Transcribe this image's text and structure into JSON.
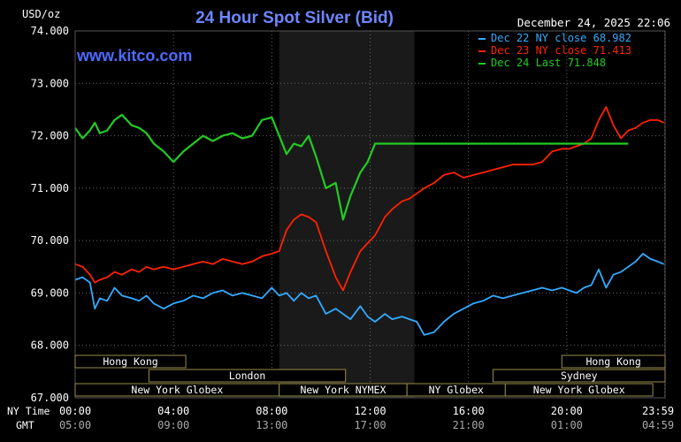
{
  "chart_data": {
    "type": "line",
    "title": "24 Hour Spot Silver (Bid)",
    "watermark": "www.kitco.com",
    "timestamp": "December 24, 2025 22:06",
    "ylabel": "USD/oz",
    "ylim": [
      67000,
      74000
    ],
    "y_ticks": [
      "74.000",
      "73.000",
      "72.000",
      "71.000",
      "70.000",
      "69.000",
      "68.000",
      "67.000"
    ],
    "y_tick_values": [
      74000,
      73000,
      72000,
      71000,
      70000,
      69000,
      68000,
      67000
    ],
    "x_row_labels": {
      "ny": "NY Time",
      "gmt": "GMT"
    },
    "x_ticks_ny": [
      "00:00",
      "04:00",
      "08:00",
      "12:00",
      "16:00",
      "20:00",
      "23:59"
    ],
    "x_ticks_gmt": [
      "05:00",
      "09:00",
      "13:00",
      "17:00",
      "21:00",
      "01:00",
      "04:59"
    ],
    "x_tick_hours": [
      0,
      4,
      8,
      12,
      16,
      20,
      23.983
    ],
    "shaded_region_hours": [
      8.3,
      13.8
    ],
    "legend": [
      {
        "label": "Dec 22 NY close 68.982",
        "color": "#33aaff"
      },
      {
        "label": "Dec 23 NY close 71.413",
        "color": "#ff2200"
      },
      {
        "label": "Dec 24 Last 71.848",
        "color": "#22cc22"
      }
    ],
    "sessions": [
      {
        "label": "Hong Kong",
        "start": 0,
        "end": 4.5,
        "row": 0
      },
      {
        "label": "Hong Kong",
        "start": 19.8,
        "end": 24,
        "row": 0
      },
      {
        "label": "London",
        "start": 3,
        "end": 11,
        "row": 1
      },
      {
        "label": "Sydney",
        "start": 17,
        "end": 24,
        "row": 2
      },
      {
        "label": "New York Globex",
        "start": 0,
        "end": 8.3,
        "row": 3
      },
      {
        "label": "New York NYMEX",
        "start": 8.3,
        "end": 13.5,
        "row": 3
      },
      {
        "label": "NY Globex",
        "start": 13.5,
        "end": 17.5,
        "row": 3
      },
      {
        "label": "New York Globex",
        "start": 17.5,
        "end": 23.5,
        "row": 3
      }
    ],
    "series": [
      {
        "name": "Dec 22 NY close 68.982",
        "color": "#33aaff",
        "x": [
          0,
          0.3,
          0.6,
          0.8,
          1,
          1.3,
          1.6,
          1.9,
          2.3,
          2.6,
          2.9,
          3.2,
          3.6,
          4,
          4.4,
          4.8,
          5.2,
          5.6,
          6,
          6.4,
          6.8,
          7.2,
          7.6,
          8,
          8.3,
          8.6,
          8.9,
          9.2,
          9.5,
          9.8,
          10.2,
          10.6,
          10.9,
          11.2,
          11.6,
          11.9,
          12.2,
          12.6,
          12.9,
          13.3,
          13.6,
          13.9,
          14.2,
          14.6,
          15,
          15.4,
          15.8,
          16.2,
          16.6,
          17,
          17.4,
          17.8,
          18.2,
          18.6,
          19,
          19.4,
          19.8,
          20.1,
          20.4,
          20.7,
          21,
          21.3,
          21.6,
          21.9,
          22.2,
          22.5,
          22.8,
          23.1,
          23.4,
          23.7,
          23.95
        ],
        "y": [
          69250,
          69300,
          69200,
          68700,
          68900,
          68850,
          69100,
          68950,
          68900,
          68850,
          68950,
          68800,
          68700,
          68800,
          68850,
          68950,
          68900,
          69000,
          69050,
          68950,
          69000,
          68950,
          68900,
          69100,
          68950,
          69000,
          68850,
          69000,
          68900,
          68950,
          68600,
          68700,
          68600,
          68500,
          68750,
          68550,
          68450,
          68600,
          68500,
          68550,
          68500,
          68450,
          68200,
          68250,
          68450,
          68600,
          68700,
          68800,
          68850,
          68950,
          68900,
          68950,
          69000,
          69050,
          69100,
          69050,
          69100,
          69050,
          69000,
          69100,
          69150,
          69450,
          69100,
          69350,
          69400,
          69500,
          69600,
          69750,
          69650,
          69600,
          69550
        ]
      },
      {
        "name": "Dec 23 NY close 71.413",
        "color": "#ff2200",
        "x": [
          0,
          0.3,
          0.6,
          0.8,
          1,
          1.3,
          1.6,
          1.9,
          2.3,
          2.6,
          2.9,
          3.2,
          3.6,
          4,
          4.4,
          4.8,
          5.2,
          5.6,
          6,
          6.4,
          6.8,
          7.2,
          7.6,
          8,
          8.3,
          8.6,
          8.9,
          9.2,
          9.5,
          9.8,
          10.2,
          10.6,
          10.9,
          11.2,
          11.6,
          11.9,
          12.2,
          12.6,
          12.9,
          13.3,
          13.6,
          13.9,
          14.2,
          14.6,
          15,
          15.4,
          15.8,
          16.2,
          16.6,
          17,
          17.4,
          17.8,
          18.2,
          18.6,
          19,
          19.4,
          19.8,
          20.1,
          20.4,
          20.7,
          21,
          21.3,
          21.6,
          21.9,
          22.2,
          22.5,
          22.8,
          23.1,
          23.4,
          23.7,
          23.95
        ],
        "y": [
          69550,
          69500,
          69350,
          69200,
          69250,
          69300,
          69400,
          69350,
          69450,
          69400,
          69500,
          69450,
          69500,
          69450,
          69500,
          69550,
          69600,
          69550,
          69650,
          69600,
          69550,
          69600,
          69700,
          69750,
          69800,
          70200,
          70400,
          70500,
          70450,
          70350,
          69800,
          69300,
          69050,
          69400,
          69800,
          69950,
          70100,
          70450,
          70600,
          70750,
          70800,
          70900,
          71000,
          71100,
          71250,
          71300,
          71200,
          71250,
          71300,
          71350,
          71400,
          71450,
          71450,
          71450,
          71500,
          71700,
          71750,
          71750,
          71800,
          71850,
          71950,
          72300,
          72550,
          72200,
          71950,
          72100,
          72150,
          72250,
          72300,
          72300,
          72250
        ]
      },
      {
        "name": "Dec 24 Last 71.848",
        "color": "#22cc22",
        "x": [
          0,
          0.3,
          0.6,
          0.8,
          1,
          1.3,
          1.6,
          1.9,
          2.3,
          2.6,
          2.9,
          3.2,
          3.6,
          4,
          4.4,
          4.8,
          5.2,
          5.6,
          6,
          6.4,
          6.8,
          7.2,
          7.6,
          8,
          8.3,
          8.6,
          8.9,
          9.2,
          9.5,
          9.8,
          10.2,
          10.6,
          10.9,
          11.2,
          11.6,
          11.9,
          12.2,
          12.6,
          12.9,
          13.3,
          13.6,
          13.9,
          14.2,
          14.6,
          15,
          15.4,
          15.8,
          16.2,
          16.6,
          17,
          17.4,
          17.8,
          18.2,
          18.6,
          19,
          19.4,
          19.8,
          20.1,
          20.4,
          20.7,
          21,
          21.3,
          21.6,
          21.9,
          22.2,
          22.5
        ],
        "y": [
          72150,
          71950,
          72100,
          72250,
          72050,
          72100,
          72300,
          72400,
          72200,
          72150,
          72050,
          71850,
          71700,
          71500,
          71700,
          71850,
          72000,
          71900,
          72000,
          72050,
          71950,
          72000,
          72300,
          72350,
          72000,
          71650,
          71850,
          71800,
          72000,
          71600,
          71000,
          71100,
          70400,
          70850,
          71300,
          71500,
          71850,
          71850,
          71850,
          71850,
          71850,
          71850,
          71850,
          71850,
          71850,
          71850,
          71850,
          71850,
          71850,
          71850,
          71850,
          71850,
          71850,
          71850,
          71850,
          71850,
          71850,
          71850,
          71850,
          71850,
          71850,
          71850,
          71850,
          71850,
          71850,
          71850
        ]
      }
    ]
  }
}
